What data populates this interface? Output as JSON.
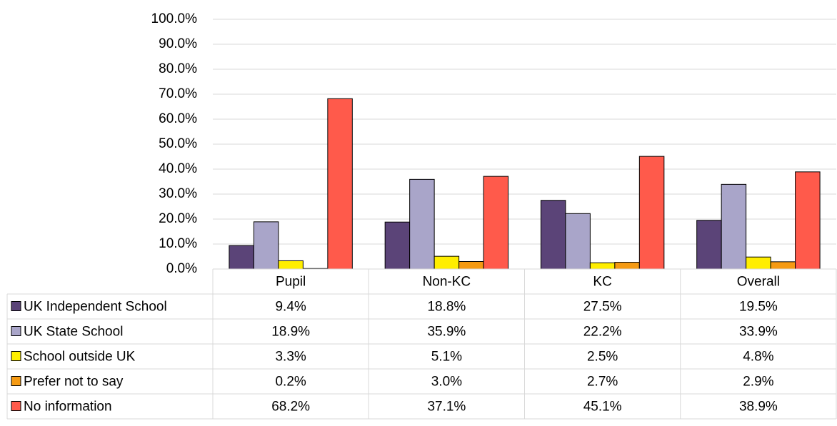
{
  "chart_data": {
    "type": "bar",
    "categories": [
      "Pupil",
      "Non-KC",
      "KC",
      "Overall"
    ],
    "series": [
      {
        "name": "UK Independent School",
        "color": "#5b4478",
        "values": [
          9.4,
          18.8,
          27.5,
          19.5
        ],
        "value_labels": [
          "9.4%",
          "18.8%",
          "27.5%",
          "19.5%"
        ]
      },
      {
        "name": "UK State School",
        "color": "#a9a5c9",
        "values": [
          18.9,
          35.9,
          22.2,
          33.9
        ],
        "value_labels": [
          "18.9%",
          "35.9%",
          "22.2%",
          "33.9%"
        ]
      },
      {
        "name": "School outside UK",
        "color": "#ffee00",
        "values": [
          3.3,
          5.1,
          2.5,
          4.8
        ],
        "value_labels": [
          "3.3%",
          "5.1%",
          "2.5%",
          "4.8%"
        ]
      },
      {
        "name": "Prefer not to say",
        "color": "#f59a12",
        "values": [
          0.2,
          3.0,
          2.7,
          2.9
        ],
        "value_labels": [
          "0.2%",
          "3.0%",
          "2.7%",
          "2.9%"
        ]
      },
      {
        "name": "No information",
        "color": "#ff5a4b",
        "values": [
          68.2,
          37.1,
          45.1,
          38.9
        ],
        "value_labels": [
          "68.2%",
          "37.1%",
          "45.1%",
          "38.9%"
        ]
      }
    ],
    "ylim": [
      0,
      100
    ],
    "yticks": [
      {
        "value": 0,
        "label": "0.0%"
      },
      {
        "value": 10,
        "label": "10.0%"
      },
      {
        "value": 20,
        "label": "20.0%"
      },
      {
        "value": 30,
        "label": "30.0%"
      },
      {
        "value": 40,
        "label": "40.0%"
      },
      {
        "value": 50,
        "label": "50.0%"
      },
      {
        "value": 60,
        "label": "60.0%"
      },
      {
        "value": 70,
        "label": "70.0%"
      },
      {
        "value": 80,
        "label": "80.0%"
      },
      {
        "value": 90,
        "label": "90.0%"
      },
      {
        "value": 100,
        "label": "100.0%"
      }
    ],
    "grid": true
  }
}
